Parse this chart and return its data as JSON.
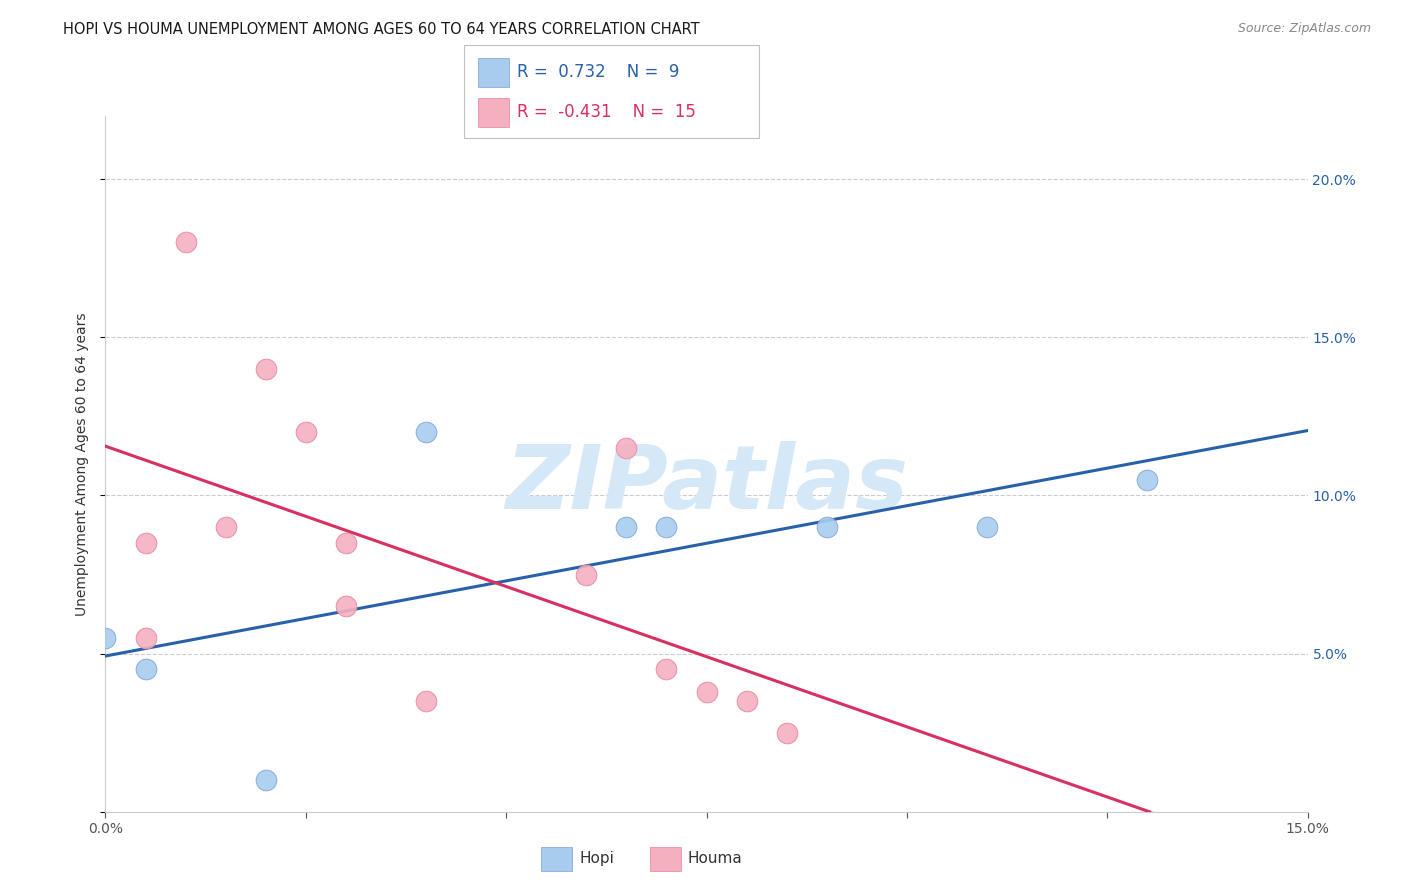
{
  "title": "HOPI VS HOUMA UNEMPLOYMENT AMONG AGES 60 TO 64 YEARS CORRELATION CHART",
  "source": "Source: ZipAtlas.com",
  "ylabel": "Unemployment Among Ages 60 to 64 years",
  "xlim": [
    0.0,
    0.15
  ],
  "ylim": [
    0.0,
    0.22
  ],
  "hopi_x": [
    0.0,
    0.005,
    0.02,
    0.04,
    0.065,
    0.07,
    0.09,
    0.11,
    0.13
  ],
  "hopi_y": [
    0.055,
    0.045,
    0.01,
    0.12,
    0.09,
    0.09,
    0.09,
    0.09,
    0.105
  ],
  "houma_x": [
    0.005,
    0.005,
    0.01,
    0.015,
    0.02,
    0.025,
    0.03,
    0.03,
    0.04,
    0.06,
    0.065,
    0.07,
    0.075,
    0.08,
    0.085
  ],
  "houma_y": [
    0.055,
    0.085,
    0.18,
    0.09,
    0.14,
    0.12,
    0.085,
    0.065,
    0.035,
    0.075,
    0.115,
    0.045,
    0.038,
    0.035,
    0.025
  ],
  "hopi_R": 0.732,
  "hopi_N": 9,
  "houma_R": -0.431,
  "houma_N": 15,
  "hopi_scatter_color": "#A8CCEE",
  "houma_scatter_color": "#F5B0C0",
  "hopi_scatter_edge": "#88AADE",
  "houma_scatter_edge": "#E890A8",
  "hopi_line_color": "#2860AA",
  "houma_line_color": "#D83060",
  "bg_color": "#FFFFFF",
  "grid_color": "#CCCCCC",
  "title_fontsize": 10.5,
  "source_fontsize": 9,
  "ylabel_fontsize": 10,
  "tick_fontsize": 10,
  "legend_fontsize": 12,
  "watermark_text": "ZIPatlas",
  "watermark_color": "#D5E8F8"
}
